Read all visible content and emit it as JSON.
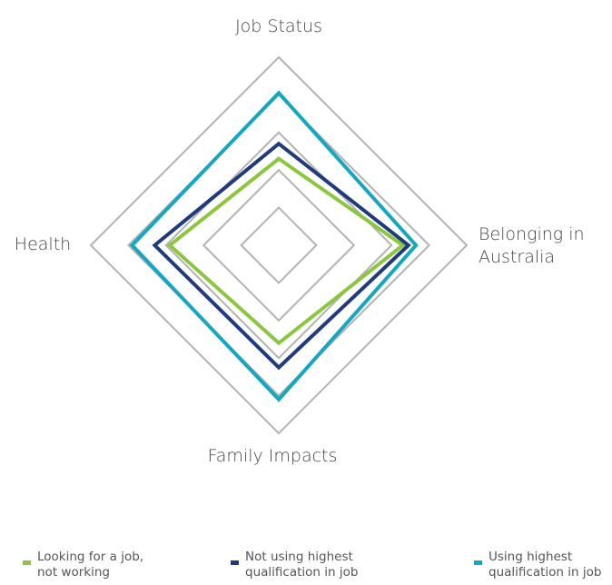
{
  "chart_data": {
    "type": "radar",
    "categories": [
      "Job Status",
      "Belonging in Australia",
      "Family Impacts",
      "Health"
    ],
    "rlim": [
      0,
      5
    ],
    "rticks": [
      1,
      2,
      3,
      4,
      5
    ],
    "grid": true,
    "grid_color": "#b3b3b3",
    "series": [
      {
        "name": "Looking for a job, not working",
        "color": "#8cc63f",
        "values": [
          2.3,
          3.3,
          2.6,
          2.9
        ]
      },
      {
        "name": "Not using highest qualification in job",
        "color": "#1f3b7c",
        "values": [
          2.7,
          3.45,
          3.25,
          3.3
        ]
      },
      {
        "name": "Using highest qualification in job",
        "color": "#15a7bf",
        "values": [
          4.05,
          3.65,
          4.1,
          3.9
        ]
      }
    ],
    "legend": "bottom"
  }
}
